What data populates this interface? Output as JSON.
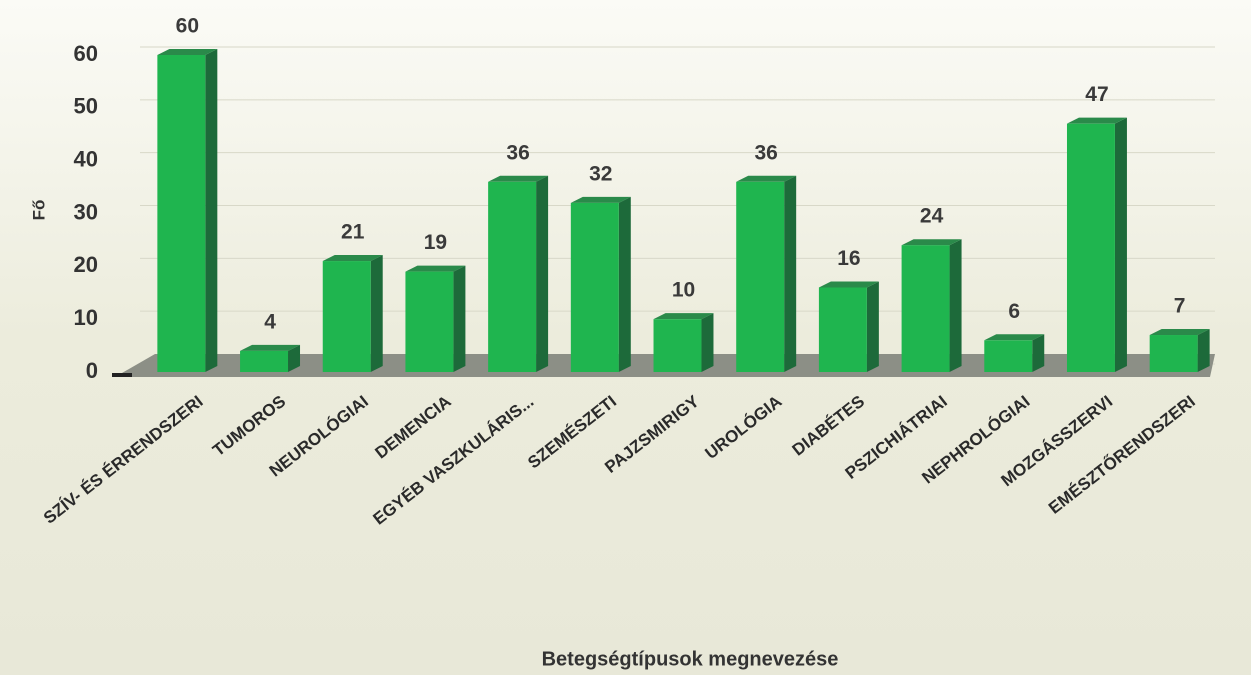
{
  "chart_data": {
    "type": "bar",
    "x_label": "Betegségtípusok megnevezése",
    "y_label": "Fő",
    "categories": [
      "SZÍV- ÉS ÉRRENDSZERI",
      "TUMOROS",
      "NEUROLÓGIAI",
      "DEMENCIA",
      "EGYÉB VASZKULÁRIS...",
      "SZEMÉSZETI",
      "PAJZSMIRIGY",
      "UROLÓGIA",
      "DIABÉTES",
      "PSZICHIÁTRIAI",
      "NEPHROLÓGIAI",
      "MOZGÁSSZERVI",
      "EMÉSZTŐRENDSZERI"
    ],
    "values": [
      60,
      4,
      21,
      19,
      36,
      32,
      10,
      36,
      16,
      24,
      6,
      47,
      7
    ],
    "color": "#1fb54f",
    "ylim": [
      0,
      60
    ],
    "yticks": [
      0,
      10,
      20,
      30,
      40,
      50,
      60
    ],
    "grid": true
  }
}
